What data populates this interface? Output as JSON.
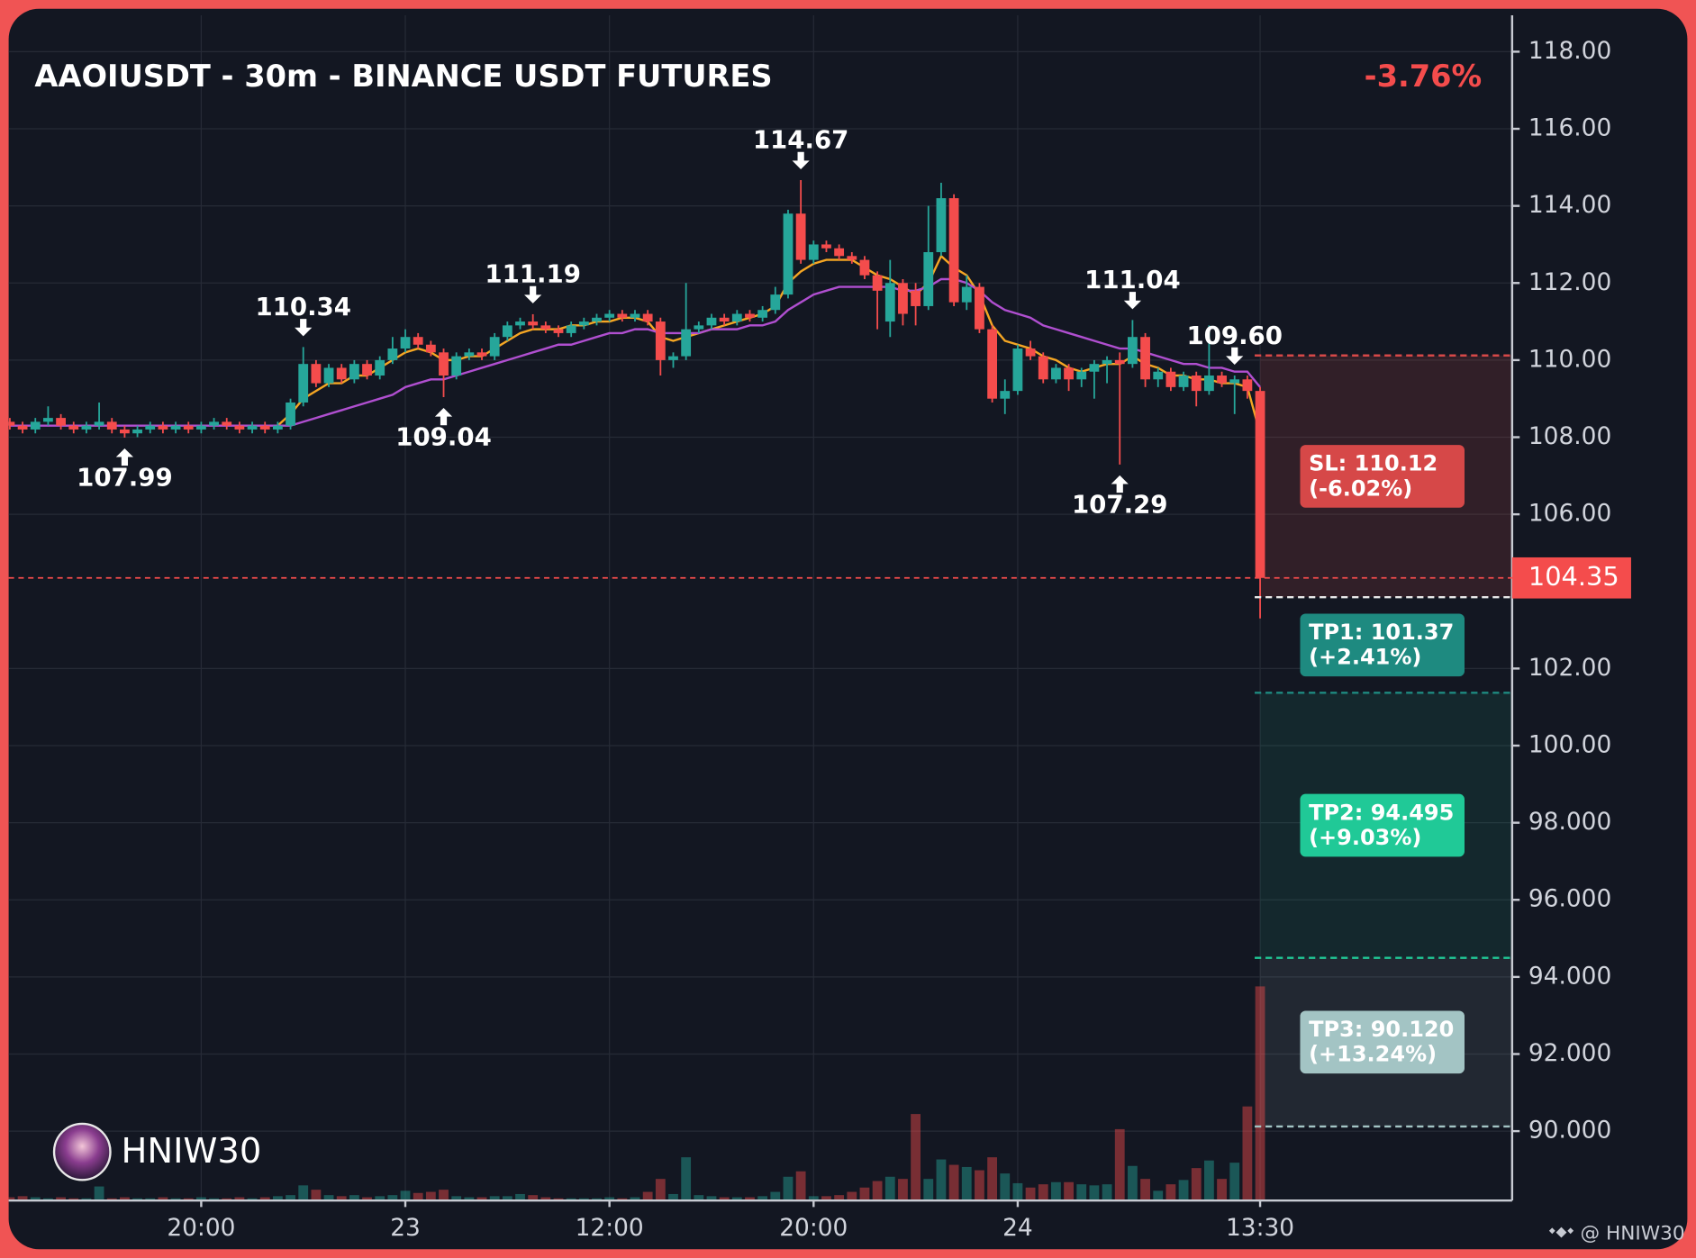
{
  "chart_data": {
    "type": "candlestick",
    "title": "AAOIUSDT - 30m - BINANCE USDT FUTURES",
    "change": "-3.76%",
    "categories": [
      null,
      null,
      null,
      null,
      null,
      null,
      null,
      null,
      null,
      null,
      null,
      null,
      null,
      null,
      null,
      "20:00",
      null,
      null,
      null,
      null,
      null,
      null,
      null,
      null,
      null,
      null,
      null,
      null,
      null,
      null,
      null,
      "23",
      null,
      null,
      null,
      null,
      null,
      null,
      null,
      null,
      null,
      null,
      null,
      null,
      null,
      null,
      null,
      "12:00",
      null,
      null,
      null,
      null,
      null,
      null,
      null,
      null,
      null,
      null,
      null,
      null,
      null,
      null,
      null,
      "20:00",
      null,
      null,
      null,
      null,
      null,
      null,
      null,
      null,
      null,
      null,
      null,
      null,
      null,
      null,
      null,
      "24",
      null,
      null,
      null,
      null,
      null,
      null,
      null,
      null,
      null,
      null,
      null,
      null,
      null,
      null,
      null,
      null,
      null,
      null,
      "13:30"
    ],
    "open": [
      108.4,
      108.3,
      108.2,
      108.4,
      108.5,
      108.3,
      108.2,
      108.3,
      108.4,
      108.2,
      108.1,
      108.2,
      108.3,
      108.2,
      108.3,
      108.2,
      108.3,
      108.4,
      108.3,
      108.2,
      108.3,
      108.2,
      108.3,
      108.9,
      109.9,
      109.4,
      109.8,
      109.5,
      109.9,
      109.6,
      110.0,
      110.3,
      110.6,
      110.4,
      110.2,
      109.6,
      110.1,
      110.2,
      110.1,
      110.6,
      110.9,
      111.0,
      110.9,
      110.8,
      110.7,
      110.9,
      111.0,
      111.1,
      111.2,
      111.1,
      111.2,
      111.0,
      110.0,
      110.1,
      110.8,
      110.9,
      111.1,
      111.0,
      111.2,
      111.1,
      111.3,
      111.7,
      113.8,
      112.6,
      113.0,
      112.9,
      112.7,
      112.6,
      112.2,
      111.0,
      112.0,
      111.8,
      111.4,
      112.8,
      114.2,
      111.5,
      111.9,
      110.8,
      109.0,
      109.2,
      110.3,
      110.1,
      109.5,
      109.8,
      109.5,
      109.7,
      109.9,
      110.0,
      109.9,
      110.6,
      109.5,
      109.7,
      109.3,
      109.6,
      109.2,
      109.6,
      109.4,
      109.5,
      109.2
    ],
    "high": [
      108.5,
      108.4,
      108.5,
      108.8,
      108.6,
      108.4,
      108.4,
      108.9,
      108.5,
      108.3,
      108.3,
      108.4,
      108.4,
      108.4,
      108.4,
      108.4,
      108.5,
      108.5,
      108.4,
      108.4,
      108.4,
      108.4,
      109.0,
      110.34,
      110.0,
      109.9,
      109.9,
      110.0,
      110.0,
      110.1,
      110.6,
      110.8,
      110.7,
      110.5,
      110.3,
      110.2,
      110.3,
      110.3,
      110.7,
      111.0,
      111.1,
      111.19,
      111.0,
      110.9,
      111.0,
      111.1,
      111.2,
      111.3,
      111.3,
      111.3,
      111.3,
      111.1,
      110.2,
      112.0,
      111.0,
      111.2,
      111.2,
      111.3,
      111.3,
      111.4,
      111.9,
      113.9,
      114.67,
      113.1,
      113.1,
      113.0,
      112.8,
      112.7,
      112.3,
      112.6,
      112.1,
      112.0,
      114.0,
      114.6,
      114.3,
      112.2,
      112.0,
      110.9,
      109.5,
      110.4,
      110.5,
      110.2,
      109.9,
      109.9,
      109.8,
      110.0,
      110.1,
      110.2,
      111.04,
      110.7,
      109.8,
      109.8,
      109.7,
      109.7,
      110.9,
      109.7,
      109.6,
      109.6,
      109.3
    ],
    "low": [
      108.2,
      108.1,
      108.1,
      108.3,
      108.2,
      108.1,
      108.1,
      108.2,
      108.1,
      107.99,
      108.0,
      108.1,
      108.1,
      108.1,
      108.1,
      108.1,
      108.2,
      108.2,
      108.1,
      108.1,
      108.1,
      108.1,
      108.2,
      108.8,
      109.3,
      109.3,
      109.4,
      109.4,
      109.5,
      109.5,
      109.9,
      110.2,
      110.3,
      110.1,
      109.04,
      109.5,
      110.0,
      110.0,
      110.0,
      110.5,
      110.8,
      110.8,
      110.7,
      110.6,
      110.6,
      110.8,
      110.9,
      111.0,
      111.0,
      111.0,
      110.9,
      109.6,
      109.8,
      110.0,
      110.7,
      110.8,
      110.9,
      110.9,
      111.0,
      111.0,
      111.2,
      111.6,
      112.5,
      112.5,
      112.8,
      112.6,
      112.5,
      112.1,
      110.8,
      110.6,
      110.9,
      110.9,
      111.3,
      112.7,
      111.4,
      111.3,
      110.7,
      108.9,
      108.6,
      109.1,
      110.0,
      109.4,
      109.4,
      109.2,
      109.3,
      109.0,
      109.4,
      107.29,
      109.8,
      109.3,
      109.3,
      109.2,
      109.2,
      108.8,
      109.1,
      109.3,
      108.6,
      109.0,
      103.3
    ],
    "close": [
      108.3,
      108.2,
      108.4,
      108.5,
      108.3,
      108.2,
      108.3,
      108.4,
      108.2,
      108.1,
      108.2,
      108.3,
      108.2,
      108.3,
      108.2,
      108.3,
      108.4,
      108.3,
      108.2,
      108.3,
      108.2,
      108.3,
      108.9,
      109.9,
      109.4,
      109.8,
      109.5,
      109.9,
      109.6,
      110.0,
      110.3,
      110.6,
      110.4,
      110.2,
      109.6,
      110.1,
      110.2,
      110.1,
      110.6,
      110.9,
      111.0,
      110.9,
      110.8,
      110.7,
      110.9,
      111.0,
      111.1,
      111.2,
      111.1,
      111.2,
      111.0,
      110.0,
      110.1,
      110.8,
      110.9,
      111.1,
      111.0,
      111.2,
      111.1,
      111.3,
      111.7,
      113.8,
      112.6,
      113.0,
      112.9,
      112.7,
      112.6,
      112.2,
      111.8,
      112.0,
      111.2,
      111.4,
      112.8,
      114.2,
      111.5,
      111.9,
      110.8,
      109.0,
      109.2,
      110.3,
      110.1,
      109.5,
      109.8,
      109.5,
      109.7,
      109.9,
      110.0,
      109.9,
      110.6,
      109.5,
      109.7,
      109.3,
      109.6,
      109.2,
      109.6,
      109.4,
      109.5,
      109.2,
      104.35
    ],
    "volume": [
      3,
      4,
      3,
      2,
      3,
      2,
      2,
      13,
      2,
      3,
      2,
      2,
      3,
      2,
      2,
      3,
      2,
      2,
      3,
      2,
      3,
      4,
      5,
      14,
      10,
      5,
      4,
      5,
      3,
      4,
      5,
      9,
      7,
      8,
      10,
      4,
      3,
      3,
      4,
      4,
      6,
      5,
      3,
      2,
      2,
      2,
      2,
      3,
      2,
      3,
      8,
      20,
      6,
      40,
      5,
      4,
      3,
      3,
      3,
      4,
      8,
      22,
      27,
      4,
      4,
      5,
      8,
      12,
      18,
      22,
      20,
      80,
      20,
      38,
      33,
      31,
      28,
      40,
      25,
      16,
      12,
      15,
      17,
      17,
      15,
      14,
      15,
      66,
      32,
      20,
      9,
      15,
      19,
      30,
      37,
      20,
      35,
      87,
      198
    ],
    "up_color": "#26a69a",
    "down_color": "#f44c4c",
    "series": [
      {
        "color": "#f5a623",
        "values": [
          null,
          null,
          null,
          null,
          null,
          null,
          null,
          null,
          null,
          null,
          null,
          null,
          null,
          null,
          null,
          null,
          null,
          null,
          null,
          null,
          null,
          108.3,
          108.6,
          109.0,
          109.2,
          109.4,
          109.4,
          109.6,
          109.6,
          109.8,
          110.0,
          110.2,
          110.3,
          110.2,
          110.0,
          110.0,
          110.1,
          110.1,
          110.3,
          110.5,
          110.7,
          110.8,
          110.8,
          110.8,
          110.9,
          110.9,
          111.0,
          111.0,
          111.1,
          111.1,
          111.0,
          110.6,
          110.5,
          110.6,
          110.7,
          110.8,
          110.9,
          111.0,
          111.1,
          111.2,
          111.4,
          112.0,
          112.3,
          112.5,
          112.6,
          112.6,
          112.6,
          112.4,
          112.2,
          112.1,
          111.9,
          111.7,
          112.0,
          112.7,
          112.4,
          112.2,
          111.7,
          110.9,
          110.5,
          110.4,
          110.3,
          110.1,
          110.0,
          109.8,
          109.7,
          109.8,
          109.9,
          109.9,
          110.1,
          109.9,
          109.8,
          109.6,
          109.6,
          109.5,
          109.5,
          109.4,
          109.4,
          109.3,
          108.1
        ]
      },
      {
        "color": "#b04fd0",
        "values": [
          108.3,
          108.3,
          108.3,
          108.3,
          108.3,
          108.3,
          108.3,
          108.3,
          108.3,
          108.3,
          108.3,
          108.3,
          108.3,
          108.3,
          108.3,
          108.3,
          108.3,
          108.3,
          108.3,
          108.3,
          108.3,
          108.3,
          108.3,
          108.4,
          108.5,
          108.6,
          108.7,
          108.8,
          108.9,
          109.0,
          109.1,
          109.3,
          109.4,
          109.5,
          109.5,
          109.6,
          109.7,
          109.8,
          109.9,
          110.0,
          110.1,
          110.2,
          110.3,
          110.4,
          110.4,
          110.5,
          110.6,
          110.7,
          110.7,
          110.8,
          110.8,
          110.7,
          110.7,
          110.7,
          110.7,
          110.8,
          110.8,
          110.8,
          110.9,
          110.9,
          111.0,
          111.3,
          111.5,
          111.7,
          111.8,
          111.9,
          111.9,
          111.9,
          111.9,
          111.9,
          111.8,
          111.8,
          111.9,
          112.1,
          112.1,
          112.0,
          111.8,
          111.5,
          111.3,
          111.2,
          111.1,
          110.9,
          110.8,
          110.7,
          110.6,
          110.5,
          110.4,
          110.3,
          110.3,
          110.2,
          110.1,
          110.0,
          109.9,
          109.9,
          109.8,
          109.8,
          109.7,
          109.7,
          109.3
        ]
      }
    ],
    "extremes": [
      110.34,
      111.19,
      114.67,
      111.04,
      107.99,
      109.04,
      {
        "value": 109.6,
        "label": "109.60"
      },
      107.29
    ],
    "last_price": 104.35,
    "position": {
      "stop": {
        "value": 110.12,
        "label": "SL: 110.12",
        "change": "(-6.02%)",
        "color": "#d64848"
      },
      "entry": 103.85,
      "targets": [
        {
          "value": 101.37,
          "label": "TP1: 101.37",
          "change": "(+2.41%)",
          "color": "#1e8a80"
        },
        {
          "value": 94.495,
          "label": "TP2: 94.495",
          "change": "(+9.03%)",
          "color": "#20c997"
        },
        {
          "value": 90.12,
          "label": "TP3: 90.120",
          "change": "(+13.24%)",
          "color": "#a3c4c4"
        }
      ]
    },
    "ylim": [
      88.2,
      119.0
    ],
    "yticks": [
      {
        "value": 118,
        "label": "118.00"
      },
      {
        "value": 116,
        "label": "116.00"
      },
      {
        "value": 114,
        "label": "114.00"
      },
      {
        "value": 112,
        "label": "112.00"
      },
      {
        "value": 110,
        "label": "110.00"
      },
      {
        "value": 108,
        "label": "108.00"
      },
      {
        "value": 106,
        "label": "106.00"
      },
      {
        "value": 102,
        "label": "102.00"
      },
      {
        "value": 100,
        "label": "100.00"
      },
      {
        "value": 98,
        "label": "98.000"
      },
      {
        "value": 96,
        "label": "96.000"
      },
      {
        "value": 94,
        "label": "94.000"
      },
      {
        "value": 92,
        "label": "92.000"
      },
      {
        "value": 90,
        "label": "90.000"
      }
    ],
    "grid": true,
    "watermark": "HNIW30",
    "credit": "@ HNIW30"
  }
}
